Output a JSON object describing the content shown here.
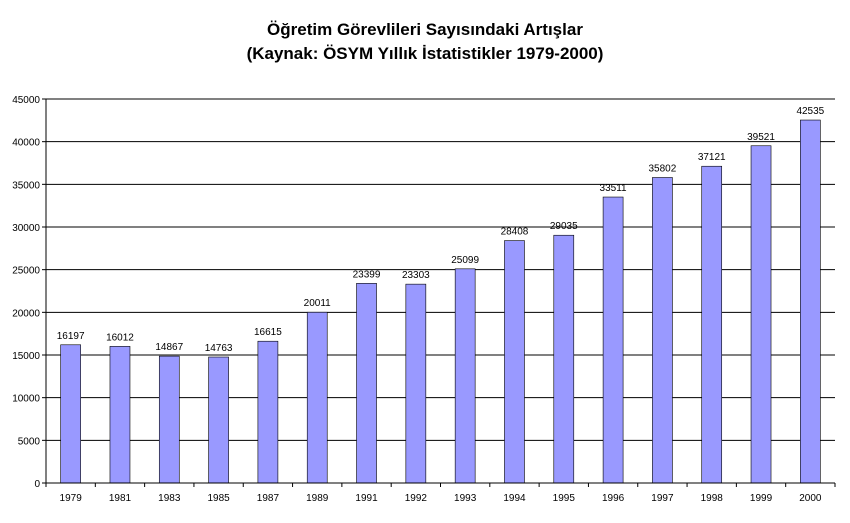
{
  "chart_data": {
    "type": "bar",
    "title": "Öğretim Görevlileri Sayısındaki Artışlar",
    "subtitle": "(Kaynak: ÖSYM Yıllık İstatistikler 1979-2000)",
    "categories": [
      "1979",
      "1981",
      "1983",
      "1985",
      "1987",
      "1989",
      "1991",
      "1992",
      "1993",
      "1994",
      "1995",
      "1996",
      "1997",
      "1998",
      "1999",
      "2000"
    ],
    "values": [
      16197,
      16012,
      14867,
      14763,
      16615,
      20011,
      23399,
      23303,
      25099,
      28408,
      29035,
      33511,
      35802,
      37121,
      39521,
      42535
    ],
    "ylim": [
      0,
      45000
    ],
    "yticks": [
      0,
      5000,
      10000,
      15000,
      20000,
      25000,
      30000,
      35000,
      40000,
      45000
    ],
    "grid": true,
    "legend": "none",
    "bar_color": "#9999ff"
  }
}
